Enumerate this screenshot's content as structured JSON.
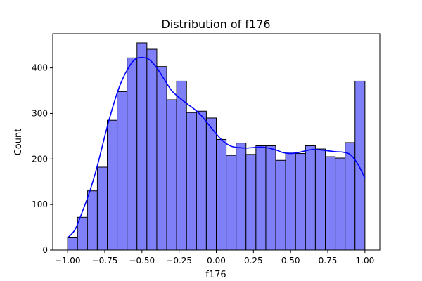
{
  "chart_data": {
    "type": "bar",
    "subtype": "histogram",
    "title": "Distribution of f176",
    "xlabel": "f176",
    "ylabel": "Count",
    "xlim": [
      -1.1,
      1.1
    ],
    "ylim": [
      0,
      475
    ],
    "xticks": [
      -1.0,
      -0.75,
      -0.5,
      -0.25,
      0.0,
      0.25,
      0.5,
      0.75,
      1.0
    ],
    "xtick_labels": [
      "−1.00",
      "−0.75",
      "−0.50",
      "−0.25",
      "0.00",
      "0.25",
      "0.50",
      "0.75",
      "1.00"
    ],
    "yticks": [
      0,
      100,
      200,
      300,
      400
    ],
    "ytick_labels": [
      "0",
      "100",
      "200",
      "300",
      "400"
    ],
    "bin_edges": [
      -1.0,
      -0.9333,
      -0.8667,
      -0.8,
      -0.7333,
      -0.6667,
      -0.6,
      -0.5333,
      -0.4667,
      -0.4,
      -0.3333,
      -0.2667,
      -0.2,
      -0.1333,
      -0.0667,
      0.0,
      0.0667,
      0.1333,
      0.2,
      0.2667,
      0.3333,
      0.4,
      0.4667,
      0.5333,
      0.6,
      0.6667,
      0.7333,
      0.8,
      0.8667,
      0.9333,
      1.0
    ],
    "counts": [
      27,
      72,
      130,
      182,
      285,
      348,
      422,
      455,
      441,
      403,
      330,
      371,
      302,
      305,
      290,
      243,
      208,
      235,
      210,
      229,
      229,
      197,
      215,
      212,
      229,
      222,
      205,
      202,
      236,
      371
    ],
    "bar_color": "#7f7ff7",
    "kde": {
      "color": "#0000ff",
      "x": [
        -1.0,
        -0.95,
        -0.9,
        -0.85,
        -0.8,
        -0.75,
        -0.7,
        -0.65,
        -0.6,
        -0.55,
        -0.5,
        -0.45,
        -0.4,
        -0.35,
        -0.3,
        -0.25,
        -0.2,
        -0.15,
        -0.1,
        -0.05,
        0.0,
        0.05,
        0.1,
        0.15,
        0.2,
        0.25,
        0.3,
        0.35,
        0.4,
        0.45,
        0.5,
        0.55,
        0.6,
        0.65,
        0.7,
        0.75,
        0.8,
        0.85,
        0.9,
        0.95,
        1.0
      ],
      "y": [
        27,
        45,
        85,
        130,
        185,
        250,
        310,
        360,
        395,
        418,
        423,
        418,
        400,
        375,
        350,
        335,
        322,
        310,
        295,
        275,
        255,
        238,
        228,
        225,
        224,
        225,
        226,
        224,
        220,
        214,
        212,
        214,
        218,
        221,
        220,
        218,
        216,
        215,
        210,
        190,
        158
      ]
    },
    "grid": false,
    "legend": "none"
  }
}
